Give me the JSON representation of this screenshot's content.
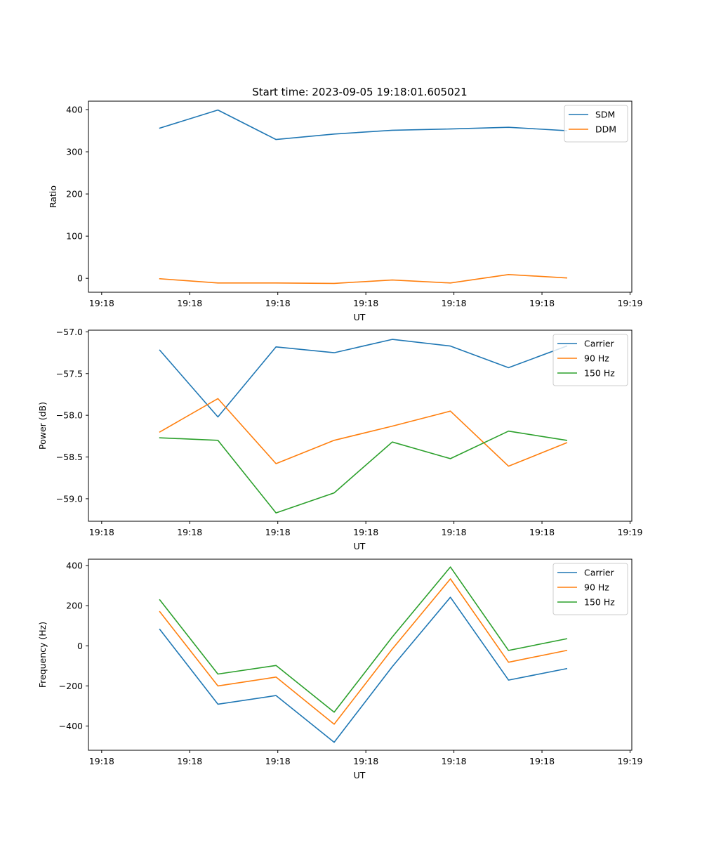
{
  "title": "Start time: 2023-09-05 19:18:01.605021",
  "colors": {
    "blue": "#1f77b4",
    "orange": "#ff7f0e",
    "green": "#2ca02c",
    "axis": "#000000",
    "legend_border": "#cccccc"
  },
  "x_tick_labels": [
    "19:18",
    "19:18",
    "19:18",
    "19:18",
    "19:18",
    "19:18",
    "19:19"
  ],
  "chart_data": [
    {
      "type": "line",
      "title": "Start time: 2023-09-05 19:18:01.605021",
      "xlabel": "UT",
      "ylabel": "Ratio",
      "x": [
        0.66,
        1.32,
        1.98,
        2.64,
        3.3,
        3.96,
        4.62,
        5.28
      ],
      "xlim": [
        -0.15,
        6.02
      ],
      "x_ticks": [
        0,
        1,
        2,
        3,
        4,
        5,
        6
      ],
      "ylim": [
        -33,
        420
      ],
      "y_ticks": [
        0,
        100,
        200,
        300,
        400
      ],
      "y_tick_labels": [
        "0",
        "100",
        "200",
        "300",
        "400"
      ],
      "legend_position": "top-right",
      "series": [
        {
          "name": "SDM",
          "color": "#1f77b4",
          "values": [
            356,
            399,
            329,
            342,
            351,
            354,
            358,
            350
          ]
        },
        {
          "name": "DDM",
          "color": "#ff7f0e",
          "values": [
            -1,
            -11,
            -11,
            -12,
            -4,
            -11,
            9,
            1
          ]
        }
      ]
    },
    {
      "type": "line",
      "xlabel": "UT",
      "ylabel": "Power (dB)",
      "x": [
        0.66,
        1.32,
        1.98,
        2.64,
        3.3,
        3.96,
        4.62,
        5.28
      ],
      "xlim": [
        -0.15,
        6.02
      ],
      "x_ticks": [
        0,
        1,
        2,
        3,
        4,
        5,
        6
      ],
      "ylim": [
        -59.27,
        -56.98
      ],
      "y_ticks": [
        -57.0,
        -57.5,
        -58.0,
        -58.5,
        -59.0
      ],
      "y_tick_labels": [
        "−57.0",
        "−57.5",
        "−58.0",
        "−58.5",
        "−59.0"
      ],
      "legend_position": "top-right",
      "series": [
        {
          "name": "Carrier",
          "color": "#1f77b4",
          "values": [
            -57.22,
            -58.02,
            -57.18,
            -57.25,
            -57.09,
            -57.17,
            -57.43,
            -57.17
          ]
        },
        {
          "name": "90 Hz",
          "color": "#ff7f0e",
          "values": [
            -58.2,
            -57.8,
            -58.58,
            -58.3,
            -58.13,
            -57.95,
            -58.61,
            -58.33
          ]
        },
        {
          "name": "150 Hz",
          "color": "#2ca02c",
          "values": [
            -58.27,
            -58.3,
            -59.17,
            -58.93,
            -58.32,
            -58.52,
            -58.19,
            -58.3
          ]
        }
      ]
    },
    {
      "type": "line",
      "xlabel": "UT",
      "ylabel": "Frequency (Hz)",
      "x": [
        0.66,
        1.32,
        1.98,
        2.64,
        3.3,
        3.96,
        4.62,
        5.28
      ],
      "xlim": [
        -0.15,
        6.02
      ],
      "x_ticks": [
        0,
        1,
        2,
        3,
        4,
        5,
        6
      ],
      "ylim": [
        -521,
        432
      ],
      "y_ticks": [
        400,
        200,
        0,
        -200,
        -400
      ],
      "y_tick_labels": [
        "400",
        "200",
        "0",
        "−200",
        "−400"
      ],
      "legend_position": "top-right",
      "series": [
        {
          "name": "Carrier",
          "color": "#1f77b4",
          "values": [
            82,
            -291,
            -248,
            -481,
            -104,
            242,
            -171,
            -114
          ]
        },
        {
          "name": "90 Hz",
          "color": "#ff7f0e",
          "values": [
            170,
            -200,
            -156,
            -391,
            -16,
            334,
            -82,
            -23
          ]
        },
        {
          "name": "150 Hz",
          "color": "#2ca02c",
          "values": [
            229,
            -141,
            -98,
            -331,
            44,
            393,
            -23,
            35
          ]
        }
      ]
    }
  ]
}
